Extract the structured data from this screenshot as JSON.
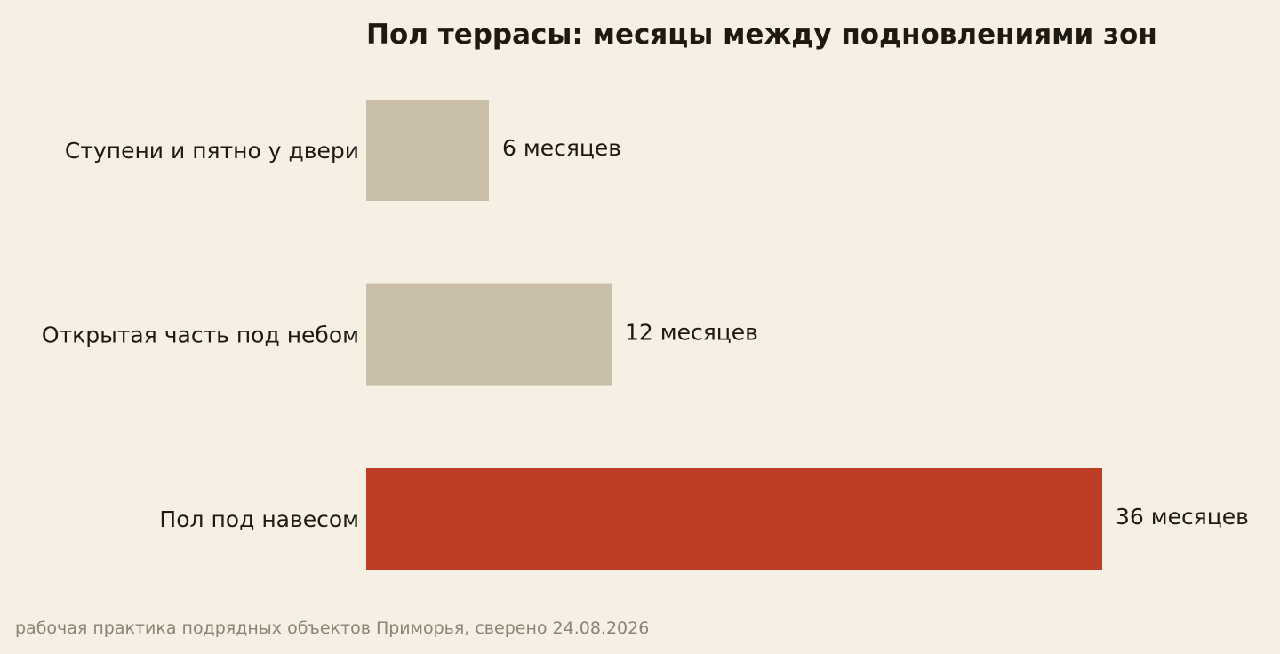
{
  "chart_data": {
    "type": "bar",
    "orientation": "horizontal",
    "title": "Пол террасы: месяцы между подновлениями зон",
    "categories": [
      "Ступени и пятно у двери",
      "Открытая часть под небом",
      "Пол под навесом"
    ],
    "values": [
      6,
      12,
      36
    ],
    "value_labels": [
      "6 месяцев",
      "12 месяцев",
      "36 месяцев"
    ],
    "unit": "месяцев",
    "bar_colors": [
      "#c9bfa9",
      "#c9bfa9",
      "#bd3d27"
    ],
    "highlight_index": 2,
    "xlim": [
      0,
      36
    ],
    "grid": false,
    "legend": "none",
    "source": "рабочая практика подрядных объектов Приморья, сверено 24.08.2026"
  },
  "colors": {
    "background": "#f6f0e4",
    "text": "#1e1a12",
    "muted_text": "#8a8476",
    "bar_default": "#c9bfa9",
    "bar_highlight": "#bd3d27"
  }
}
